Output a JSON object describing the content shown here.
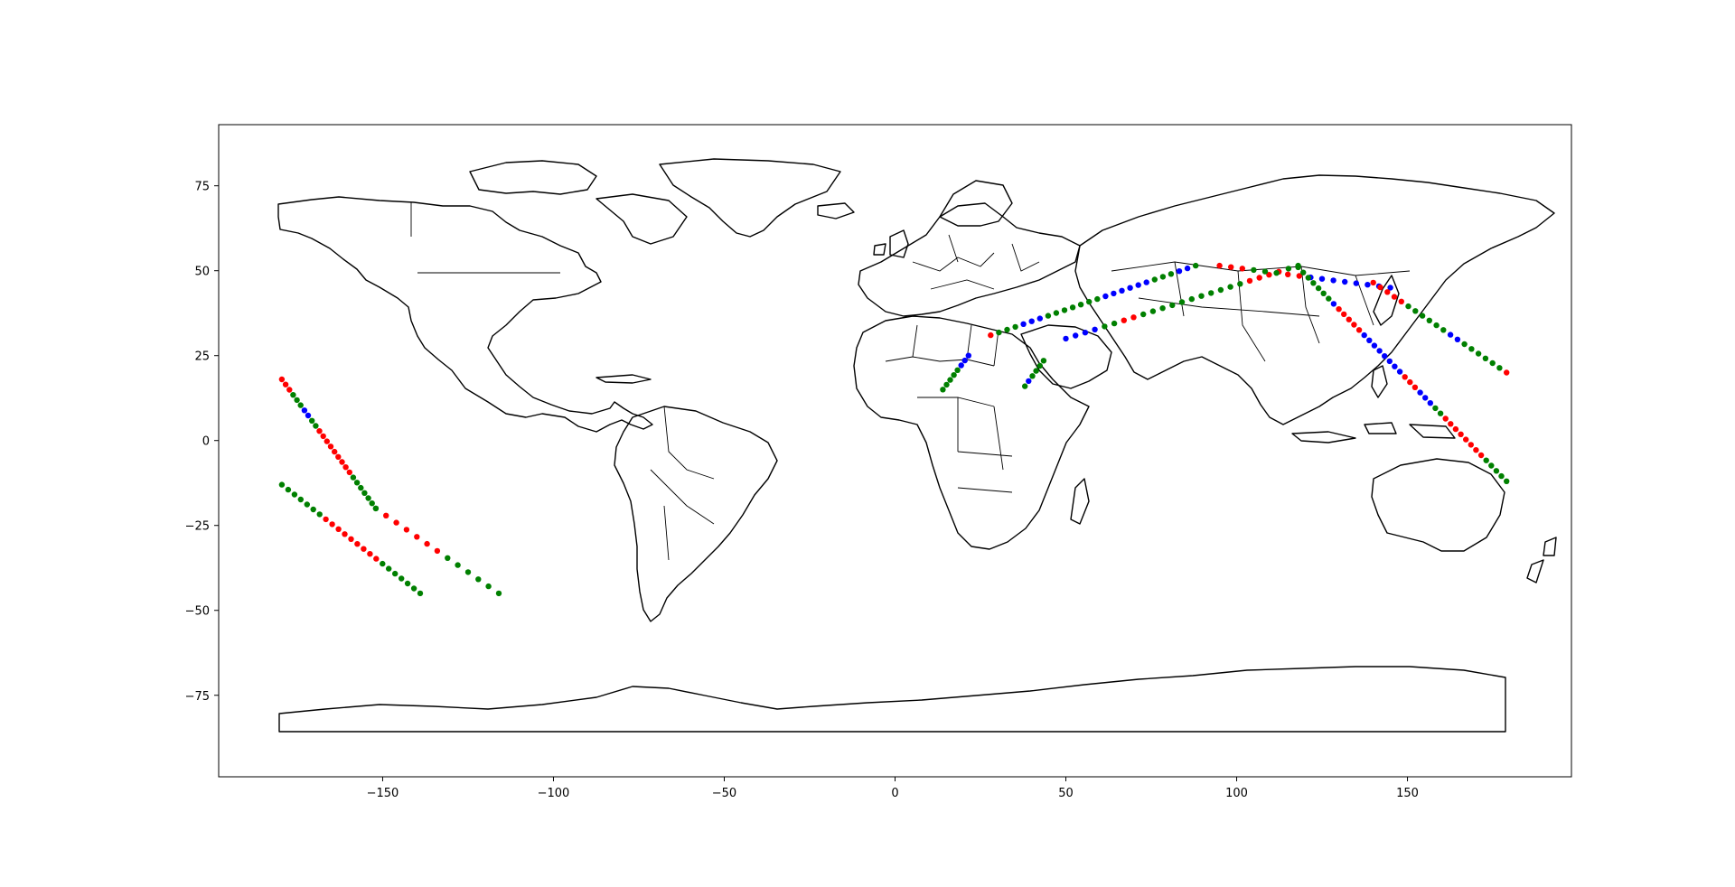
{
  "map": {
    "projection": "PlateCarree",
    "xlim": [
      -198,
      198
    ],
    "ylim": [
      -99,
      93
    ],
    "x_ticks": [
      -150,
      -100,
      -50,
      0,
      50,
      100,
      150
    ],
    "y_ticks": [
      75,
      50,
      25,
      0,
      -25,
      -50,
      -75
    ],
    "x_tick_labels": [
      "−150",
      "−100",
      "−50",
      "0",
      "50",
      "100",
      "150"
    ],
    "y_tick_labels": [
      "75",
      "50",
      "25",
      "0",
      "−25",
      "−50",
      "−75"
    ],
    "grid": false,
    "basemap": "world country outlines"
  },
  "chart_data": {
    "type": "scatter",
    "colors": {
      "red": "#ff0000",
      "green": "#008000",
      "blue": "#0000ff"
    },
    "segments": [
      {
        "lon_start": -179.5,
        "lat_start": 18,
        "lon_end": -152,
        "lat_end": -20,
        "colors": "rrrgggbbggrrrrrrrrrggggggg"
      },
      {
        "lon_start": -152,
        "lat_start": -20,
        "lon_end": -116,
        "lat_end": -45,
        "colors": "grrrrrrgggggg"
      },
      {
        "lon_start": -179.5,
        "lat_start": -13,
        "lon_end": -139,
        "lat_end": -45,
        "colors": "gggggggrrrrrrrrrggggggg"
      },
      {
        "lon_start": 14,
        "lat_start": 15,
        "lon_end": 21.5,
        "lat_end": 25,
        "colors": "gggggbbb"
      },
      {
        "lon_start": 38,
        "lat_start": 16,
        "lon_end": 43.5,
        "lat_end": 23.5,
        "colors": "gbgggg"
      },
      {
        "lon_start": 28,
        "lat_start": 31,
        "lon_end": 88,
        "lat_end": 51.5,
        "colors": "rgggbbbgggggggbbbbbbgggbbg"
      },
      {
        "lon_start": 50,
        "lat_start": 30,
        "lon_end": 118,
        "lat_end": 51.5,
        "colors": "bbbbggrrgggggggggggrrrrgg"
      },
      {
        "lon_start": 95,
        "lat_start": 51.5,
        "lon_end": 145,
        "lat_end": 45,
        "colors": "rrrgggrrbbbbbbbb"
      },
      {
        "lon_start": 118,
        "lat_start": 51,
        "lon_end": 179,
        "lat_end": -12,
        "colors": "gggggggbrrrrrbbbbbbbbrrrbbbggrrrrrrrrggggg"
      },
      {
        "lon_start": 140,
        "lat_start": 46.5,
        "lon_end": 179,
        "lat_end": 20,
        "colors": "rrrrrggggggbbggggggr"
      }
    ]
  }
}
